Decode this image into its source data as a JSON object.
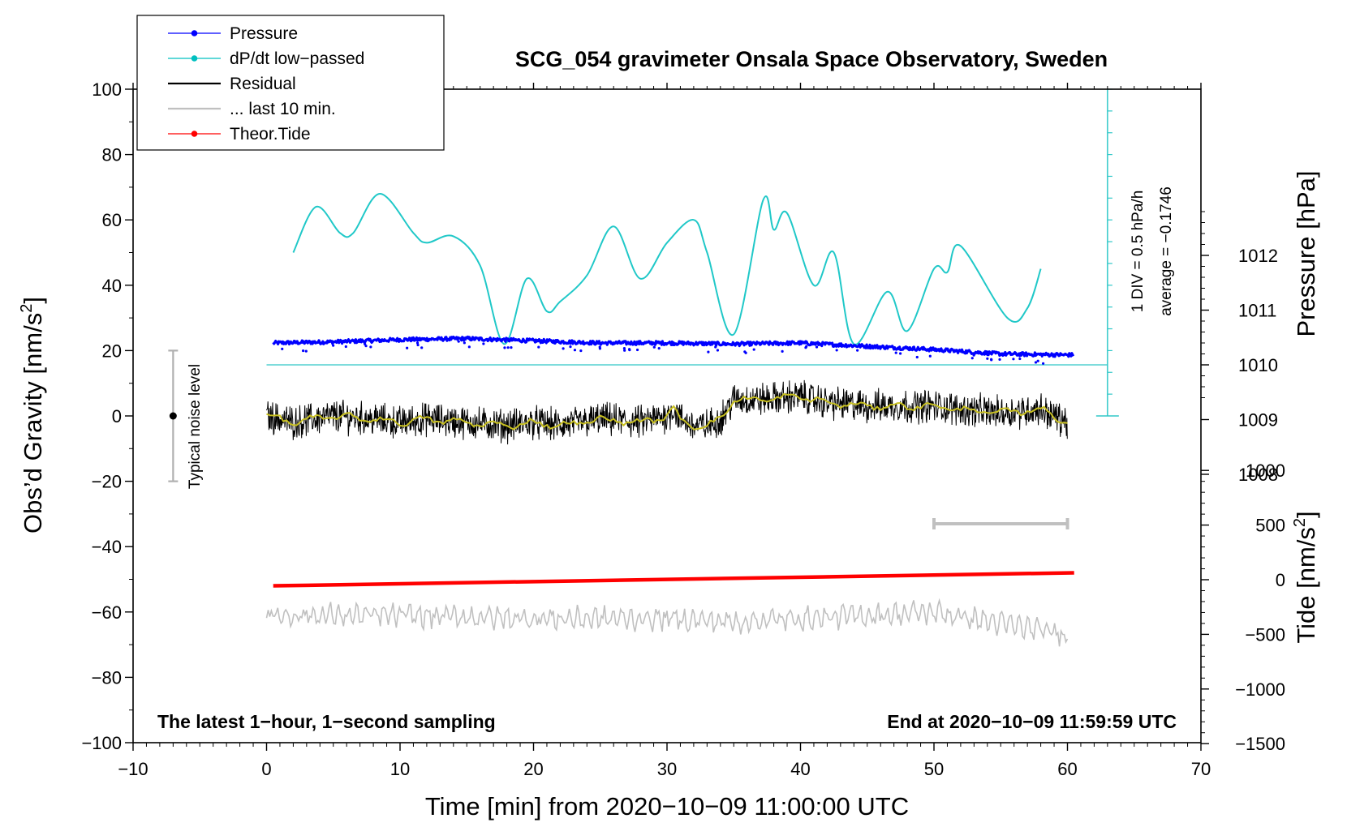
{
  "chart_data": {
    "type": "line",
    "title": "SCG_054 gravimeter Onsala Space Observatory, Sweden",
    "xlabel": "Time [min] from 2020−10−09 11:00:00 UTC",
    "ylabel": "Obs’d Gravity [nm/s²]",
    "ylabel_parts": {
      "base": "Obs’d Gravity [nm/s",
      "sup": "2",
      "end": "]"
    },
    "y2label": "Pressure [hPa]",
    "y3label": "Tide [nm/s²]",
    "y3label_parts": {
      "base": "Tide [nm/s",
      "sup": "2",
      "end": "]"
    },
    "xlim": [
      -10,
      70
    ],
    "ylim": [
      -100,
      100
    ],
    "x_ticks": [
      "−10",
      "0",
      "10",
      "20",
      "30",
      "40",
      "50",
      "60",
      "70"
    ],
    "y_ticks": [
      "−100",
      "−80",
      "−60",
      "−40",
      "−20",
      "0",
      "20",
      "40",
      "60",
      "80",
      "100"
    ],
    "pressure_ticks": [
      "1008",
      "1009",
      "1010",
      "1011",
      "1012"
    ],
    "pressure_range_hPa": [
      1007.0,
      1013.0
    ],
    "tide_ticks": [
      "−1500",
      "−1000",
      "−500",
      "0",
      "500",
      "1000"
    ],
    "tide_range": [
      -1500,
      1000
    ],
    "bottom_left_note": "The latest 1−hour, 1−second sampling",
    "bottom_right_note": "End at 2020−10−09 11:59:59 UTC",
    "noise_label": "Typical noise level",
    "noise_bar": {
      "x": -7,
      "center": 0,
      "half_range": 20
    },
    "scale_label_1": "1 DIV = 0.5 hPa/h",
    "scale_label_2": "average = −0.1746",
    "dpdt_baseline_hPa": 1010.0,
    "window_bar_min": [
      50,
      60
    ],
    "legend": [
      {
        "label": "Pressure",
        "color": "#0000ff",
        "marker": "dot"
      },
      {
        "label": "dP/dt low−passed",
        "color": "#00c0c0",
        "marker": "dot"
      },
      {
        "label": "Residual",
        "color": "#000000",
        "marker": "line"
      },
      {
        "label": "... last 10 min.",
        "color": "#c0c0c0",
        "marker": "line"
      },
      {
        "label": "Theor.Tide",
        "color": "#ff0000",
        "marker": "dot"
      }
    ],
    "series": [
      {
        "name": "Pressure",
        "units": "hPa",
        "color": "#0000ff",
        "x": [
          0.5,
          5,
          10,
          15,
          20,
          25,
          30,
          35,
          40,
          45,
          50,
          55,
          60.5
        ],
        "y": [
          1010.4,
          1010.42,
          1010.46,
          1010.48,
          1010.44,
          1010.4,
          1010.4,
          1010.38,
          1010.4,
          1010.34,
          1010.28,
          1010.2,
          1010.18
        ]
      },
      {
        "name": "dP/dt low−passed",
        "units": "nm/s² plot scale",
        "color": "#00c0c0",
        "x": [
          2,
          3.7,
          5.5,
          6.5,
          8.5,
          11,
          12,
          14,
          16,
          17.8,
          19.5,
          21,
          22,
          24,
          26,
          28,
          30,
          32,
          33,
          35,
          37.2,
          38,
          39,
          41,
          42.5,
          44,
          46.5,
          48,
          50,
          51,
          52,
          55.5,
          57,
          58
        ],
        "y": [
          50,
          64,
          56,
          56,
          68,
          56,
          53,
          55,
          46,
          22,
          42,
          32,
          35,
          43,
          58,
          42,
          53,
          60,
          50,
          25,
          66,
          57,
          62,
          40,
          50,
          22,
          38,
          26,
          45,
          44,
          52,
          30,
          33,
          45
        ]
      },
      {
        "name": "Residual",
        "units": "nm/s²",
        "color": "#000000",
        "x": [
          0,
          2,
          5,
          8,
          10,
          12,
          15,
          18,
          20,
          22,
          25,
          28,
          30,
          30.5,
          31,
          32,
          33,
          34,
          35,
          37,
          40,
          42,
          45,
          48,
          50,
          52,
          55,
          58,
          60
        ],
        "y": [
          0,
          -2,
          0,
          -1,
          -2,
          -1,
          -2,
          -3,
          -2,
          -3,
          -1,
          -2,
          0,
          2,
          -1,
          -3,
          -3,
          -1,
          5,
          5,
          6,
          4,
          3,
          3,
          3,
          2,
          1,
          2,
          -2
        ]
      },
      {
        "name": "... last 10 min.",
        "units": "nm/s²",
        "color": "#c0c0c0",
        "x": [
          0,
          10,
          20,
          30,
          35,
          40,
          50,
          60
        ],
        "y": [
          -61,
          -61,
          -62,
          -62,
          -63,
          -62,
          -60,
          -67
        ]
      },
      {
        "name": "Theor.Tide",
        "units": "nm/s²",
        "color": "#ff0000",
        "x": [
          0.5,
          60.5
        ],
        "y": [
          -52,
          -48
        ]
      }
    ]
  }
}
